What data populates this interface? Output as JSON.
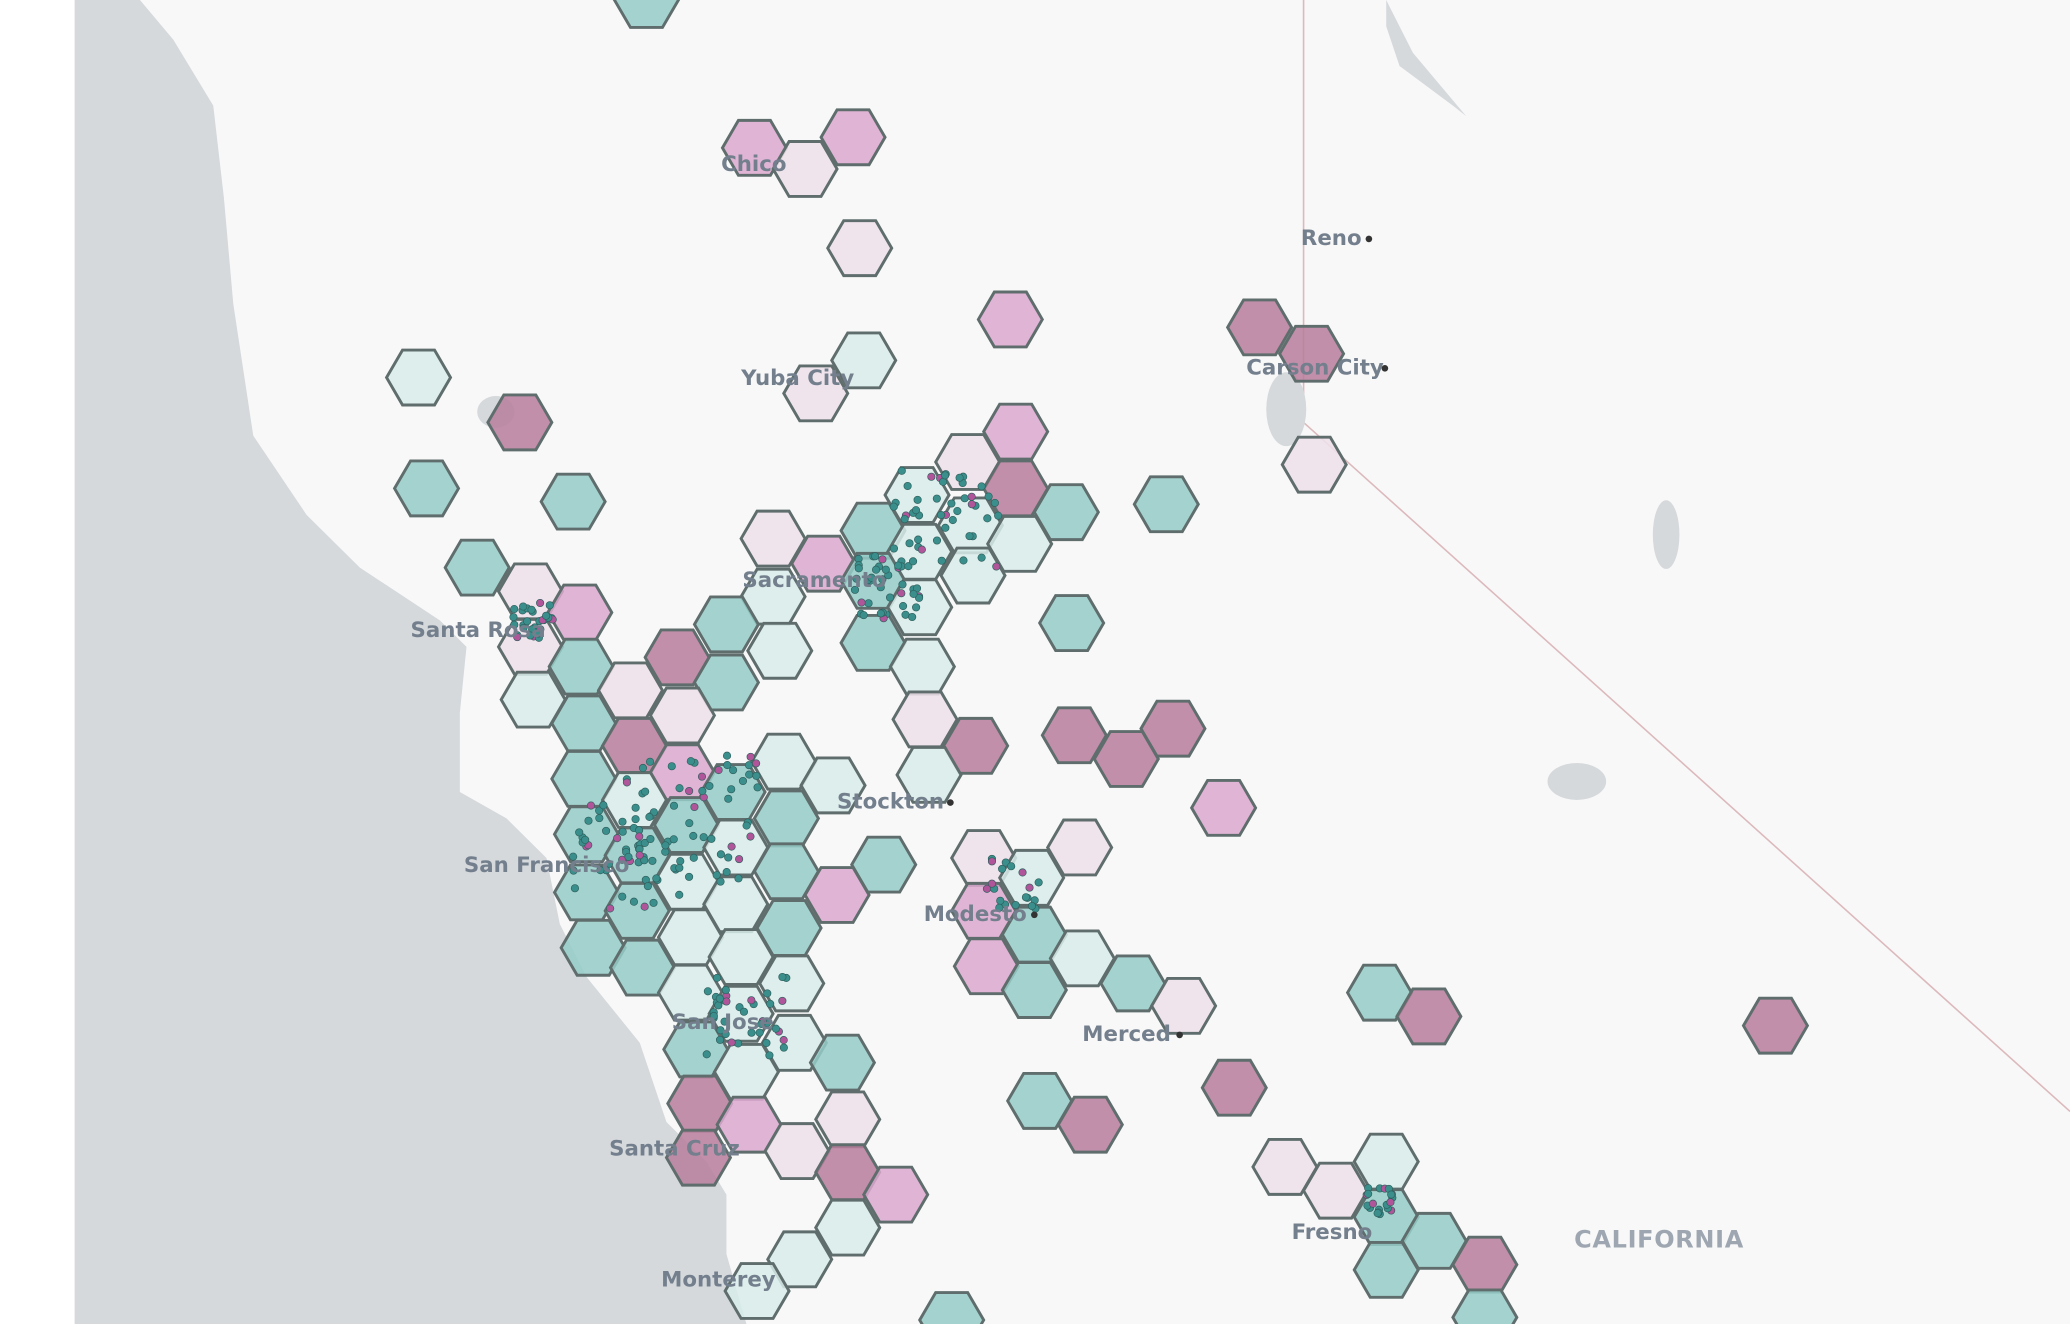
{
  "map": {
    "places": [
      "Chico",
      "Reno",
      "Yuba City",
      "Carson City",
      "Sacramento",
      "Santa Rosa",
      "Stockton",
      "San Francisco",
      "Modesto",
      "Merced",
      "San Jose",
      "Santa Cruz",
      "Fresno",
      "Monterey"
    ],
    "region": "CALIFORNIA"
  }
}
